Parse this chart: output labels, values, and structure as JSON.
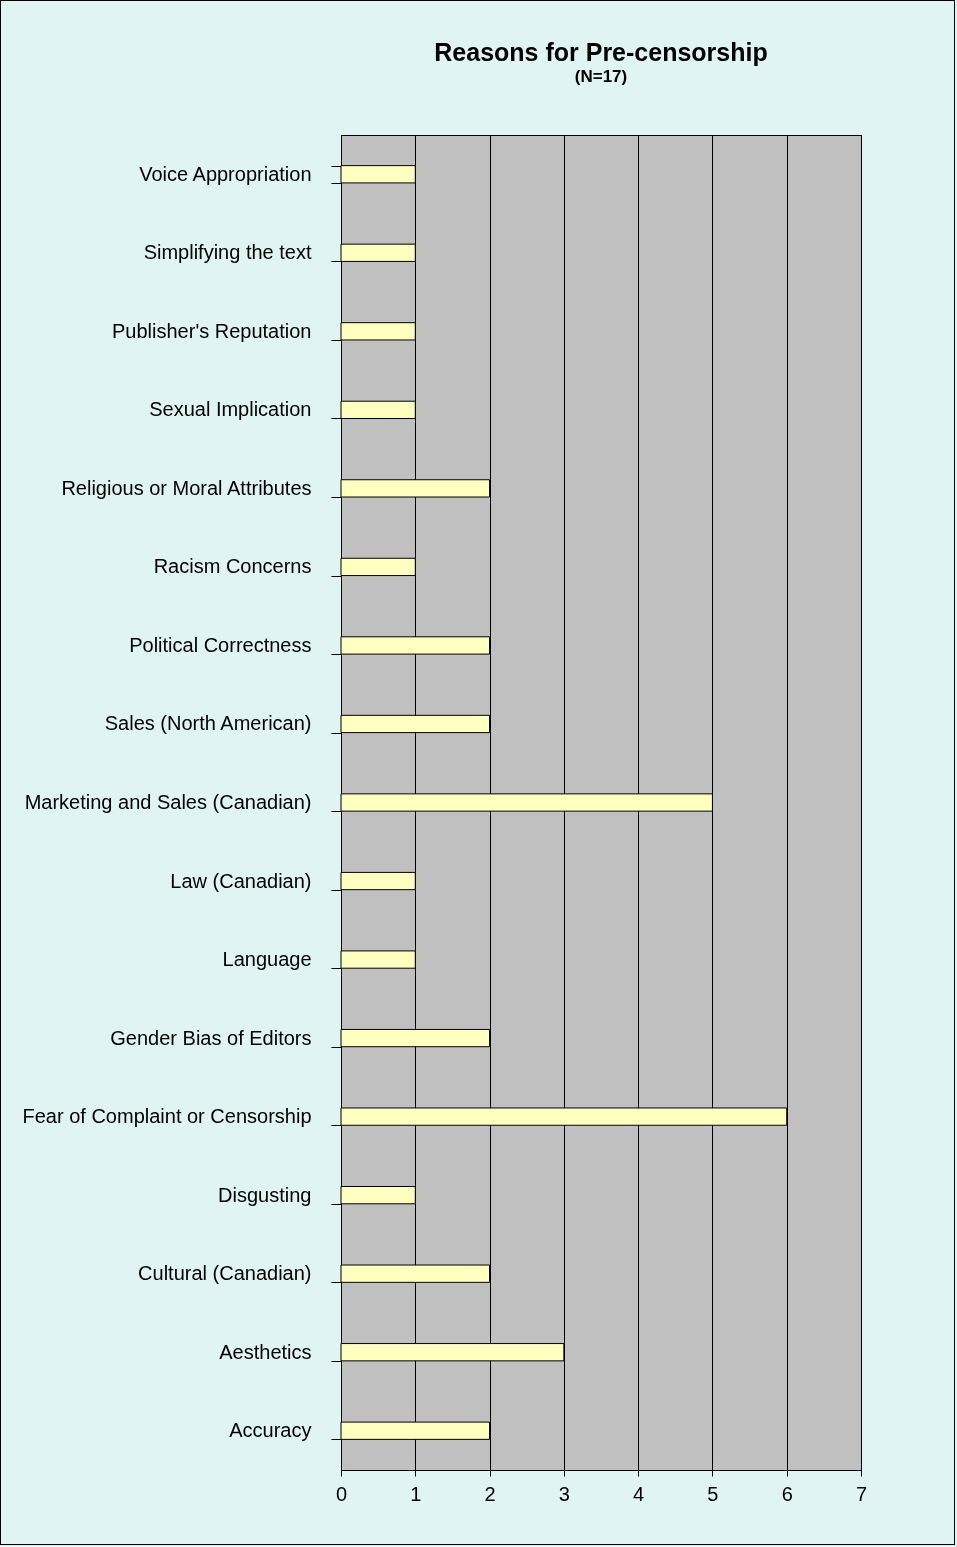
{
  "chart_data": {
    "type": "bar",
    "orientation": "horizontal",
    "title": "Reasons for Pre-censorship",
    "subtitle": "(N=17)",
    "categories": [
      "Voice Appropriation",
      "Simplifying the text",
      "Publisher's Reputation",
      "Sexual Implication",
      "Religious or Moral Attributes",
      "Racism Concerns",
      "Political Correctness",
      "Sales (North American)",
      "Marketing and Sales (Canadian)",
      "Law (Canadian)",
      "Language",
      "Gender Bias of Editors",
      "Fear of Complaint or Censorship",
      "Disgusting",
      "Cultural (Canadian)",
      "Aesthetics",
      "Accuracy"
    ],
    "values": [
      1,
      1,
      1,
      1,
      2,
      1,
      2,
      2,
      5,
      1,
      1,
      2,
      6,
      1,
      2,
      3,
      2
    ],
    "color": "#ffffc0",
    "xlim": [
      0,
      7
    ],
    "xticks": [
      0,
      1,
      2,
      3,
      4,
      5,
      6,
      7
    ],
    "grid": "x"
  }
}
